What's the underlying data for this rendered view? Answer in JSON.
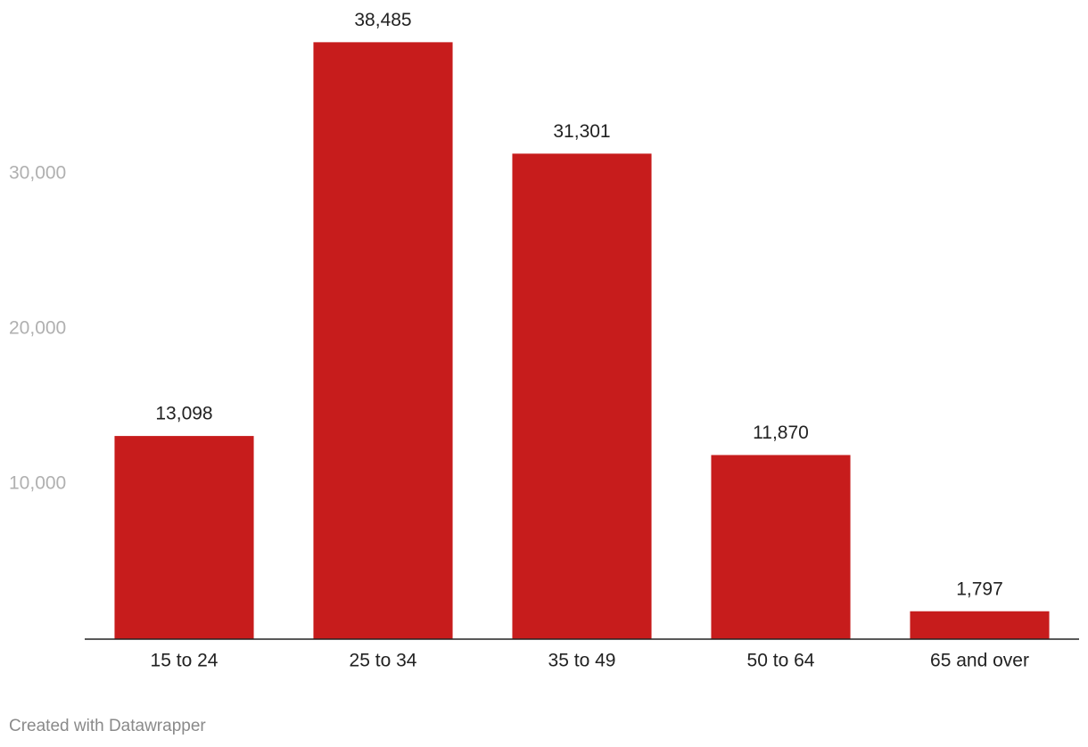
{
  "chart_data": {
    "type": "bar",
    "categories": [
      "15 to 24",
      "25 to 34",
      "35 to 49",
      "50 to 64",
      "65 and over"
    ],
    "values": [
      13098,
      38485,
      31301,
      11870,
      1797
    ],
    "value_labels": [
      "13,098",
      "38,485",
      "31,301",
      "11,870",
      "1,797"
    ],
    "color": "#c71c1c",
    "ylim": [
      0,
      40000
    ],
    "yticks": [
      {
        "value": 10000,
        "label": "10,000"
      },
      {
        "value": 20000,
        "label": "20,000"
      },
      {
        "value": 30000,
        "label": "30,000"
      }
    ],
    "grid": false,
    "footer": "Created with Datawrapper"
  }
}
